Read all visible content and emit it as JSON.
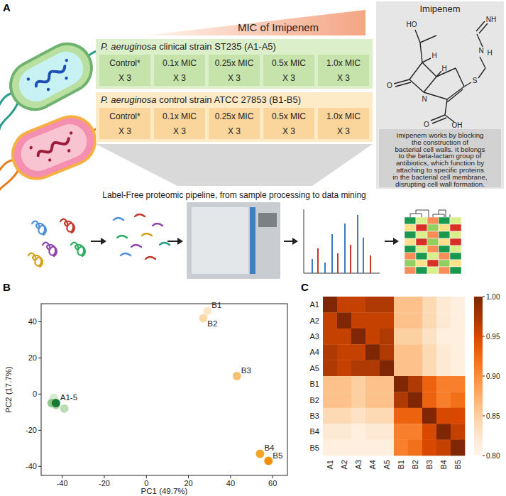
{
  "panel_a": {
    "letter": "A",
    "gradient_label": "MIC of Imipenem",
    "strains": [
      {
        "species": "P. aeruginosa",
        "name": "clinical strain ST235 (A1-A5)",
        "conditions": [
          "Control*",
          "0.1x MIC",
          "0.25x MIC",
          "0.5x MIC",
          "1.0x MIC"
        ],
        "replicates": "X 3"
      },
      {
        "species": "P. aeruginosa",
        "name": "control strain ATCC 27853 (B1-B5)",
        "conditions": [
          "Control*",
          "0.1x MIC",
          "0.25x MIC",
          "0.5x MIC",
          "1.0x MIC"
        ],
        "replicates": "X 3"
      }
    ],
    "drug": {
      "title": "Imipenem",
      "atoms": [
        "HO",
        "H",
        "H",
        "O",
        "N",
        "S",
        "N",
        "H",
        "NH",
        "O",
        "OH"
      ],
      "description": [
        "Imipenem works by blocking",
        "the construction of",
        "bacterial cell walls. It belongs",
        "to the beta-lactam group of",
        "antibiotics, which function by",
        "attaching to specific proteins",
        "in the bacterial cell membrane,",
        "disrupting cell wall formation."
      ]
    },
    "pipeline_label": "Label-Free proteomic pipeline, from sample processing to data mining"
  },
  "chart_data": [
    {
      "type": "scatter",
      "panel": "B",
      "xlabel": "PC1 (49.7%)",
      "ylabel": "PC2 (17.7%)",
      "xlim": [
        -50,
        67
      ],
      "ylim": [
        -45,
        50
      ],
      "xticks": [
        -40,
        -20,
        0,
        20,
        40,
        60
      ],
      "yticks": [
        -40,
        -20,
        0,
        20,
        40
      ],
      "grid": false,
      "series": [
        {
          "x": [
            -44,
            -43,
            -45,
            -39,
            -43
          ],
          "y": [
            -2,
            -6,
            -5,
            -8,
            -5
          ],
          "colors": [
            "#d6ecd0",
            "#a8d5a1",
            "#8cc88a",
            "#b9deb3",
            "#1a7a35"
          ],
          "labels": [
            null,
            null,
            null,
            null,
            "A1-5"
          ]
        },
        {
          "x": [
            29,
            27,
            43,
            54,
            58
          ],
          "y": [
            46,
            42,
            10,
            -33,
            -37
          ],
          "colors": [
            "#fde6c8",
            "#fbd9a8",
            "#f7c071",
            "#f5a623",
            "#f29100"
          ],
          "labels": [
            "B1",
            "B2",
            "B3",
            "B4",
            "B5"
          ]
        }
      ]
    },
    {
      "type": "heatmap",
      "panel": "C",
      "x": [
        "A1",
        "A2",
        "A3",
        "A4",
        "A5",
        "B1",
        "B2",
        "B3",
        "B4",
        "B5"
      ],
      "y": [
        "A1",
        "A2",
        "A3",
        "A4",
        "A5",
        "B1",
        "B2",
        "B3",
        "B4",
        "B5"
      ],
      "values": [
        [
          1.0,
          0.96,
          0.96,
          0.97,
          0.97,
          0.86,
          0.86,
          0.84,
          0.82,
          0.81
        ],
        [
          0.96,
          1.0,
          0.96,
          0.96,
          0.96,
          0.86,
          0.86,
          0.84,
          0.82,
          0.81
        ],
        [
          0.96,
          0.96,
          1.0,
          0.96,
          0.97,
          0.85,
          0.85,
          0.83,
          0.81,
          0.81
        ],
        [
          0.97,
          0.96,
          0.96,
          1.0,
          0.97,
          0.86,
          0.86,
          0.84,
          0.82,
          0.81
        ],
        [
          0.97,
          0.96,
          0.97,
          0.97,
          1.0,
          0.86,
          0.86,
          0.84,
          0.82,
          0.81
        ],
        [
          0.86,
          0.86,
          0.85,
          0.86,
          0.86,
          1.0,
          0.97,
          0.93,
          0.91,
          0.91
        ],
        [
          0.86,
          0.86,
          0.85,
          0.86,
          0.86,
          0.97,
          1.0,
          0.93,
          0.91,
          0.92
        ],
        [
          0.84,
          0.84,
          0.83,
          0.84,
          0.84,
          0.93,
          0.93,
          1.0,
          0.95,
          0.95
        ],
        [
          0.82,
          0.82,
          0.81,
          0.82,
          0.82,
          0.91,
          0.91,
          0.95,
          1.0,
          0.96
        ],
        [
          0.81,
          0.81,
          0.81,
          0.81,
          0.81,
          0.91,
          0.92,
          0.95,
          0.96,
          1.0
        ]
      ],
      "colorbar_range": [
        0.8,
        1.0
      ],
      "colorbar_ticks": [
        {
          "value": 0.8,
          "label": "0.80"
        },
        {
          "value": 0.85,
          "label": "0.85"
        },
        {
          "value": 0.9,
          "label": "0.90"
        },
        {
          "value": 0.95,
          "label": "0.95"
        },
        {
          "value": 1.0,
          "label": "1.00"
        }
      ]
    }
  ]
}
